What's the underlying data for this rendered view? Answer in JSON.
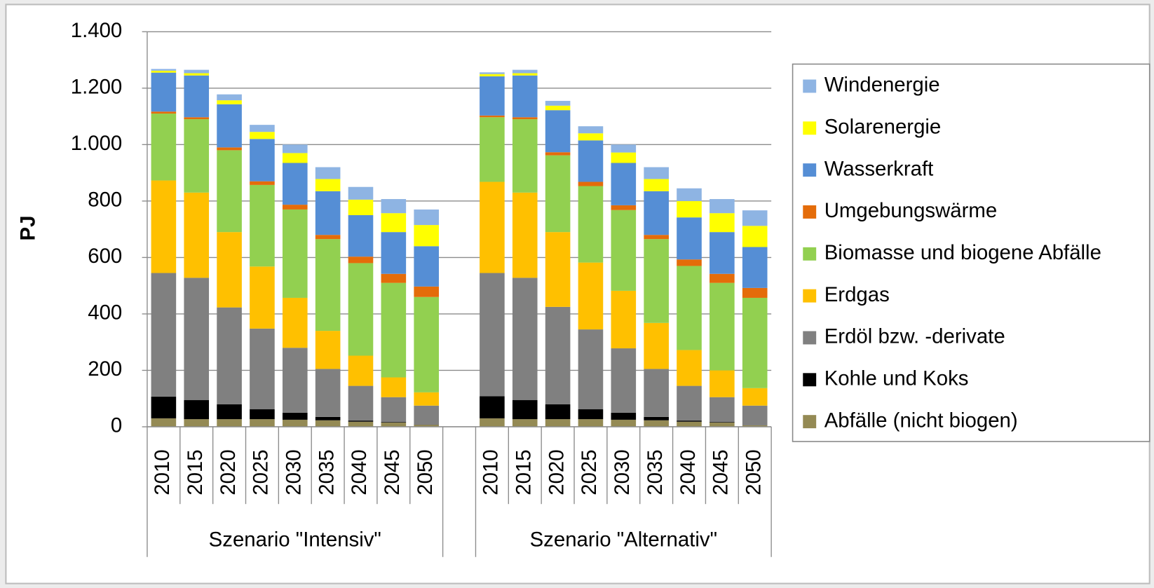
{
  "chart_data": {
    "type": "stacked_bar",
    "y_label": "PJ",
    "groups": [
      {
        "label": "Szenario \"Intensiv\"",
        "categories": [
          "2010",
          "2015",
          "2020",
          "2025",
          "2030",
          "2035",
          "2040",
          "2045",
          "2050"
        ]
      },
      {
        "label": "Szenario \"Alternativ\"",
        "categories": [
          "2010",
          "2015",
          "2020",
          "2025",
          "2030",
          "2035",
          "2040",
          "2045",
          "2050"
        ]
      }
    ],
    "series": [
      {
        "name": "Abfälle (nicht biogen)",
        "color": "#948a54",
        "values": [
          30,
          27,
          27,
          27,
          25,
          23,
          18,
          15,
          7,
          30,
          27,
          27,
          27,
          25,
          23,
          18,
          15,
          5
        ]
      },
      {
        "name": "Kohle und Koks",
        "color": "#000000",
        "values": [
          77,
          68,
          53,
          35,
          25,
          12,
          4,
          2,
          1,
          78,
          68,
          53,
          35,
          25,
          12,
          4,
          2,
          0
        ]
      },
      {
        "name": "Erdöl bzw. -derivate",
        "color": "#808080",
        "values": [
          438,
          433,
          343,
          286,
          230,
          170,
          123,
          88,
          67,
          437,
          433,
          345,
          283,
          228,
          170,
          123,
          88,
          70
        ]
      },
      {
        "name": "Erdgas",
        "color": "#ffc000",
        "values": [
          328,
          302,
          267,
          220,
          177,
          135,
          107,
          70,
          47,
          323,
          302,
          265,
          237,
          204,
          163,
          127,
          95,
          62
        ]
      },
      {
        "name": "Biomasse und biogene Abfälle",
        "color": "#92d050",
        "values": [
          237,
          260,
          290,
          289,
          313,
          325,
          328,
          335,
          338,
          229,
          260,
          272,
          271,
          286,
          297,
          298,
          310,
          320
        ]
      },
      {
        "name": "Umgebungswärme",
        "color": "#e46c0a",
        "values": [
          7,
          7,
          10,
          13,
          17,
          15,
          23,
          32,
          37,
          6,
          7,
          11,
          15,
          17,
          15,
          23,
          32,
          35
        ]
      },
      {
        "name": "Wasserkraft",
        "color": "#558ed5",
        "values": [
          138,
          148,
          153,
          150,
          148,
          155,
          147,
          148,
          143,
          139,
          148,
          149,
          147,
          150,
          155,
          149,
          148,
          145
        ]
      },
      {
        "name": "Solarenergie",
        "color": "#ffff00",
        "values": [
          7,
          8,
          14,
          25,
          35,
          43,
          55,
          67,
          75,
          8,
          8,
          16,
          25,
          37,
          43,
          58,
          67,
          75
        ]
      },
      {
        "name": "Windenergie",
        "color": "#8eb4e3",
        "values": [
          6,
          12,
          21,
          25,
          30,
          42,
          45,
          50,
          55,
          6,
          12,
          17,
          25,
          28,
          42,
          45,
          50,
          55
        ]
      }
    ],
    "ylim": [
      0,
      1400
    ],
    "yticks": [
      0,
      200,
      400,
      600,
      800,
      {
        "value": 1000,
        "label": "1.000"
      },
      {
        "value": 1200,
        "label": "1.200"
      },
      {
        "value": 1400,
        "label": "1.400"
      }
    ],
    "grid": true,
    "legend": "right"
  }
}
